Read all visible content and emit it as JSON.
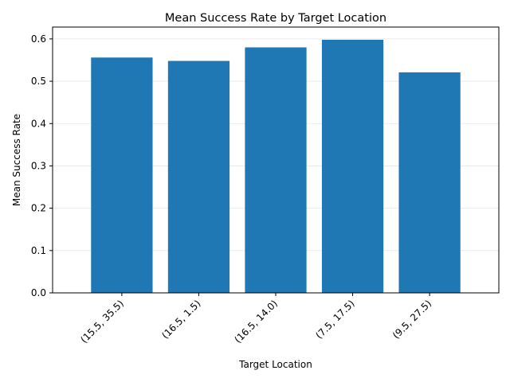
{
  "chart_data": {
    "type": "bar",
    "title": "Mean Success Rate by Target Location",
    "xlabel": "Target Location",
    "ylabel": "Mean Success Rate",
    "categories": [
      "(15.5, 35.5)",
      "(16.5, 1.5)",
      "(16.5, 14.0)",
      "(7.5, 17.5)",
      "(9.5, 27.5)"
    ],
    "values": [
      0.556,
      0.548,
      0.58,
      0.598,
      0.521
    ],
    "ylim": [
      0,
      0.628
    ],
    "yticks": [
      "0.0",
      "0.1",
      "0.2",
      "0.3",
      "0.4",
      "0.5",
      "0.6"
    ],
    "grid": "y",
    "bar_color": "#1f77b4"
  }
}
